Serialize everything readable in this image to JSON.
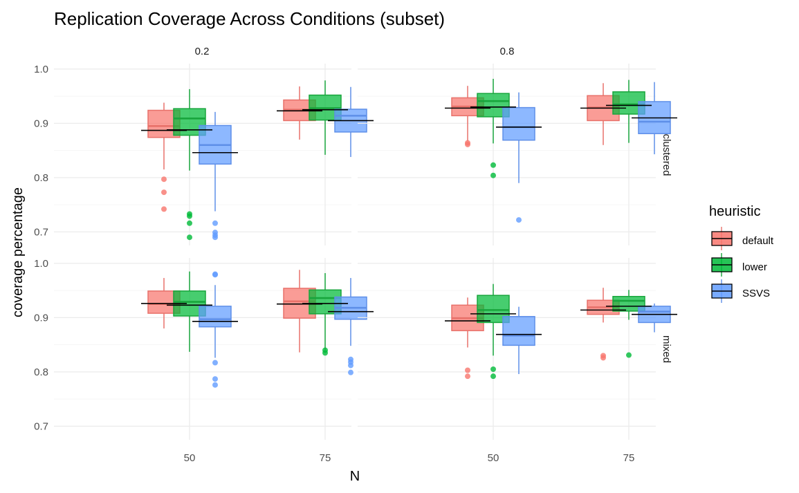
{
  "chart_data": {
    "type": "box",
    "title": "Replication Coverage Across Conditions (subset)",
    "xlabel": "N",
    "ylabel": "coverage percentage",
    "facet_cols": [
      "0.2",
      "0.8"
    ],
    "facet_rows": [
      "clustered",
      "mixed"
    ],
    "categories": [
      "50",
      "75"
    ],
    "ylim": [
      0.675,
      1.01
    ],
    "y_ticks": [
      "0.7",
      "0.8",
      "0.9",
      "1.0"
    ],
    "legend": {
      "title": "heuristic",
      "position": "right",
      "entries": [
        "default",
        "lower",
        "SSVS"
      ]
    },
    "colors": {
      "default": {
        "fill": "#F8766D",
        "stroke": "#E8716A"
      },
      "lower": {
        "fill": "#00BA38",
        "stroke": "#18A53C"
      },
      "SSVS": {
        "fill": "#619CFF",
        "stroke": "#5E8FE8"
      },
      "mean_line": "#000000"
    },
    "panels": [
      {
        "col": "0.2",
        "row": "clustered",
        "groups": [
          {
            "N": "50",
            "heuristic": "default",
            "min": 0.815,
            "q1": 0.874,
            "median": 0.895,
            "q3": 0.924,
            "max": 0.938,
            "mean": 0.887,
            "outliers": [
              0.797,
              0.773,
              0.742
            ]
          },
          {
            "N": "50",
            "heuristic": "lower",
            "min": 0.813,
            "q1": 0.878,
            "median": 0.909,
            "q3": 0.927,
            "max": 0.963,
            "mean": 0.888,
            "outliers": [
              0.733,
              0.729,
              0.716,
              0.69
            ]
          },
          {
            "N": "50",
            "heuristic": "SSVS",
            "min": 0.738,
            "q1": 0.825,
            "median": 0.86,
            "q3": 0.896,
            "max": 0.921,
            "mean": 0.846,
            "outliers": [
              0.716,
              0.699,
              0.694,
              0.69
            ]
          },
          {
            "N": "75",
            "heuristic": "default",
            "min": 0.87,
            "q1": 0.905,
            "median": 0.925,
            "q3": 0.943,
            "max": 0.968,
            "mean": 0.923,
            "outliers": []
          },
          {
            "N": "75",
            "heuristic": "lower",
            "min": 0.842,
            "q1": 0.906,
            "median": 0.928,
            "q3": 0.952,
            "max": 0.979,
            "mean": 0.925,
            "outliers": []
          },
          {
            "N": "75",
            "heuristic": "SSVS",
            "min": 0.838,
            "q1": 0.884,
            "median": 0.914,
            "q3": 0.926,
            "max": 0.967,
            "mean": 0.905,
            "outliers": []
          }
        ]
      },
      {
        "col": "0.8",
        "row": "clustered",
        "groups": [
          {
            "N": "50",
            "heuristic": "default",
            "min": 0.867,
            "q1": 0.914,
            "median": 0.931,
            "q3": 0.947,
            "max": 0.969,
            "mean": 0.928,
            "outliers": [
              0.864,
              0.861
            ]
          },
          {
            "N": "50",
            "heuristic": "lower",
            "min": 0.863,
            "q1": 0.912,
            "median": 0.941,
            "q3": 0.955,
            "max": 0.982,
            "mean": 0.93,
            "outliers": [
              0.823,
              0.804
            ]
          },
          {
            "N": "50",
            "heuristic": "SSVS",
            "min": 0.79,
            "q1": 0.869,
            "median": 0.893,
            "q3": 0.929,
            "max": 0.957,
            "mean": 0.893,
            "outliers": [
              0.722
            ]
          },
          {
            "N": "75",
            "heuristic": "default",
            "min": 0.86,
            "q1": 0.905,
            "median": 0.929,
            "q3": 0.951,
            "max": 0.974,
            "mean": 0.928,
            "outliers": []
          },
          {
            "N": "75",
            "heuristic": "lower",
            "min": 0.864,
            "q1": 0.917,
            "median": 0.935,
            "q3": 0.958,
            "max": 0.98,
            "mean": 0.933,
            "outliers": []
          },
          {
            "N": "75",
            "heuristic": "SSVS",
            "min": 0.843,
            "q1": 0.881,
            "median": 0.903,
            "q3": 0.94,
            "max": 0.976,
            "mean": 0.91,
            "outliers": []
          }
        ]
      },
      {
        "col": "0.2",
        "row": "mixed",
        "groups": [
          {
            "N": "50",
            "heuristic": "default",
            "min": 0.88,
            "q1": 0.908,
            "median": 0.925,
            "q3": 0.949,
            "max": 0.973,
            "mean": 0.926,
            "outliers": []
          },
          {
            "N": "50",
            "heuristic": "lower",
            "min": 0.837,
            "q1": 0.903,
            "median": 0.929,
            "q3": 0.949,
            "max": 0.985,
            "mean": 0.923,
            "outliers": []
          },
          {
            "N": "50",
            "heuristic": "SSVS",
            "min": 0.826,
            "q1": 0.883,
            "median": 0.897,
            "q3": 0.921,
            "max": 0.96,
            "mean": 0.893,
            "outliers": [
              0.98,
              0.979,
              0.817,
              0.787,
              0.776
            ]
          },
          {
            "N": "75",
            "heuristic": "default",
            "min": 0.836,
            "q1": 0.899,
            "median": 0.93,
            "q3": 0.954,
            "max": 0.988,
            "mean": 0.925,
            "outliers": []
          },
          {
            "N": "75",
            "heuristic": "lower",
            "min": 0.841,
            "q1": 0.907,
            "median": 0.936,
            "q3": 0.951,
            "max": 0.982,
            "mean": 0.926,
            "outliers": [
              0.84,
              0.835
            ]
          },
          {
            "N": "75",
            "heuristic": "SSVS",
            "min": 0.848,
            "q1": 0.897,
            "median": 0.918,
            "q3": 0.938,
            "max": 0.973,
            "mean": 0.911,
            "outliers": [
              0.823,
              0.818,
              0.812,
              0.799
            ]
          }
        ]
      },
      {
        "col": "0.8",
        "row": "mixed",
        "groups": [
          {
            "N": "50",
            "heuristic": "default",
            "min": 0.845,
            "q1": 0.876,
            "median": 0.899,
            "q3": 0.923,
            "max": 0.937,
            "mean": 0.894,
            "outliers": [
              0.803,
              0.792
            ]
          },
          {
            "N": "50",
            "heuristic": "lower",
            "min": 0.83,
            "q1": 0.891,
            "median": 0.914,
            "q3": 0.941,
            "max": 0.962,
            "mean": 0.907,
            "outliers": [
              0.805,
              0.792
            ]
          },
          {
            "N": "50",
            "heuristic": "SSVS",
            "min": 0.796,
            "q1": 0.849,
            "median": 0.867,
            "q3": 0.902,
            "max": 0.92,
            "mean": 0.869,
            "outliers": []
          },
          {
            "N": "75",
            "heuristic": "default",
            "min": 0.891,
            "q1": 0.906,
            "median": 0.919,
            "q3": 0.932,
            "max": 0.955,
            "mean": 0.914,
            "outliers": [
              0.83,
              0.826
            ]
          },
          {
            "N": "75",
            "heuristic": "lower",
            "min": 0.896,
            "q1": 0.912,
            "median": 0.931,
            "q3": 0.939,
            "max": 0.951,
            "mean": 0.921,
            "outliers": [
              0.831
            ]
          },
          {
            "N": "75",
            "heuristic": "SSVS",
            "min": 0.873,
            "q1": 0.891,
            "median": 0.911,
            "q3": 0.921,
            "max": 0.926,
            "mean": 0.906,
            "outliers": []
          }
        ]
      }
    ]
  }
}
